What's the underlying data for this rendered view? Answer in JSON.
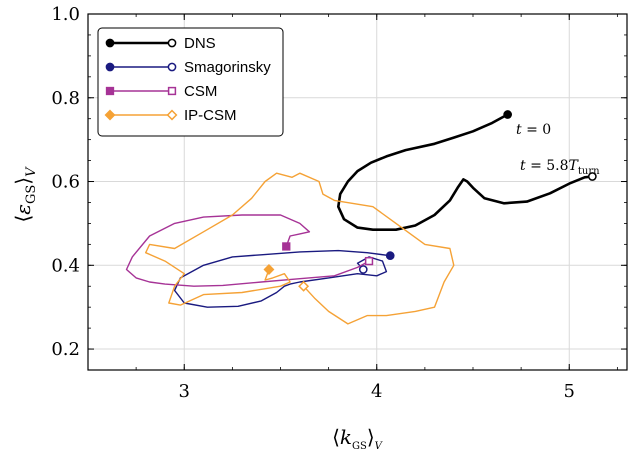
{
  "chart_data": {
    "type": "line",
    "title": "",
    "xlabel": "⟨k_GS⟩_V",
    "ylabel": "⟨ε_GS⟩_V",
    "xlim": [
      2.5,
      5.3
    ],
    "ylim": [
      0.15,
      1.0
    ],
    "x_ticks": [
      3,
      4,
      5
    ],
    "y_ticks": [
      0.2,
      0.4,
      0.6,
      0.8,
      1.0
    ],
    "x_tick_labels": [
      "3",
      "4",
      "5"
    ],
    "y_tick_labels": [
      "0.2",
      "0.4",
      "0.6",
      "0.8",
      "1.0"
    ],
    "grid": true,
    "legend_position": "top-left",
    "annotations": [
      {
        "text": "t = 0",
        "x": 4.72,
        "y": 0.72
      },
      {
        "text": "t = 5.8T_turn",
        "x": 4.75,
        "y": 0.62
      }
    ],
    "series": [
      {
        "name": "DNS",
        "color": "#000000",
        "start_marker": "filled-circle",
        "end_marker": "open-circle",
        "points": [
          [
            4.68,
            0.76
          ],
          [
            4.6,
            0.74
          ],
          [
            4.5,
            0.72
          ],
          [
            4.4,
            0.705
          ],
          [
            4.3,
            0.69
          ],
          [
            4.15,
            0.675
          ],
          [
            4.05,
            0.66
          ],
          [
            3.97,
            0.645
          ],
          [
            3.9,
            0.625
          ],
          [
            3.85,
            0.6
          ],
          [
            3.81,
            0.57
          ],
          [
            3.8,
            0.54
          ],
          [
            3.83,
            0.51
          ],
          [
            3.9,
            0.49
          ],
          [
            3.98,
            0.485
          ],
          [
            4.1,
            0.485
          ],
          [
            4.2,
            0.495
          ],
          [
            4.3,
            0.52
          ],
          [
            4.38,
            0.555
          ],
          [
            4.42,
            0.585
          ],
          [
            4.45,
            0.605
          ],
          [
            4.47,
            0.6
          ],
          [
            4.5,
            0.585
          ],
          [
            4.56,
            0.56
          ],
          [
            4.66,
            0.548
          ],
          [
            4.78,
            0.552
          ],
          [
            4.9,
            0.572
          ],
          [
            5.0,
            0.595
          ],
          [
            5.08,
            0.61
          ],
          [
            5.12,
            0.612
          ]
        ]
      },
      {
        "name": "Smagorinsky",
        "color": "#1a1a80",
        "start_marker": "filled-circle",
        "end_marker": "open-circle",
        "points": [
          [
            4.07,
            0.423
          ],
          [
            3.95,
            0.43
          ],
          [
            3.8,
            0.435
          ],
          [
            3.6,
            0.432
          ],
          [
            3.4,
            0.425
          ],
          [
            3.25,
            0.42
          ],
          [
            3.1,
            0.4
          ],
          [
            2.98,
            0.37
          ],
          [
            2.95,
            0.34
          ],
          [
            3.0,
            0.31
          ],
          [
            3.12,
            0.3
          ],
          [
            3.28,
            0.302
          ],
          [
            3.4,
            0.315
          ],
          [
            3.48,
            0.335
          ],
          [
            3.52,
            0.35
          ],
          [
            3.55,
            0.355
          ],
          [
            3.6,
            0.36
          ],
          [
            3.75,
            0.37
          ],
          [
            3.9,
            0.38
          ],
          [
            4.0,
            0.375
          ],
          [
            4.05,
            0.385
          ],
          [
            4.03,
            0.41
          ],
          [
            3.96,
            0.42
          ],
          [
            3.9,
            0.405
          ],
          [
            3.93,
            0.39
          ]
        ]
      },
      {
        "name": "CSM",
        "color": "#a63396",
        "start_marker": "filled-square",
        "end_marker": "open-square",
        "points": [
          [
            3.53,
            0.445
          ],
          [
            3.55,
            0.47
          ],
          [
            3.6,
            0.475
          ],
          [
            3.65,
            0.48
          ],
          [
            3.6,
            0.5
          ],
          [
            3.5,
            0.52
          ],
          [
            3.3,
            0.52
          ],
          [
            3.1,
            0.515
          ],
          [
            2.95,
            0.5
          ],
          [
            2.82,
            0.47
          ],
          [
            2.73,
            0.42
          ],
          [
            2.7,
            0.39
          ],
          [
            2.75,
            0.37
          ],
          [
            2.82,
            0.36
          ],
          [
            2.9,
            0.355
          ],
          [
            3.05,
            0.35
          ],
          [
            3.2,
            0.352
          ],
          [
            3.4,
            0.36
          ],
          [
            3.6,
            0.368
          ],
          [
            3.78,
            0.375
          ],
          [
            3.9,
            0.395
          ],
          [
            3.96,
            0.41
          ]
        ]
      },
      {
        "name": "IP-CSM",
        "color": "#f5a236",
        "start_marker": "filled-diamond",
        "end_marker": "open-diamond",
        "points": [
          [
            3.44,
            0.39
          ],
          [
            3.42,
            0.365
          ],
          [
            3.46,
            0.37
          ],
          [
            3.52,
            0.38
          ],
          [
            3.55,
            0.36
          ],
          [
            3.5,
            0.35
          ],
          [
            3.3,
            0.335
          ],
          [
            3.1,
            0.33
          ],
          [
            2.98,
            0.305
          ],
          [
            2.92,
            0.31
          ],
          [
            2.95,
            0.35
          ],
          [
            3.0,
            0.38
          ],
          [
            2.9,
            0.41
          ],
          [
            2.8,
            0.43
          ],
          [
            2.82,
            0.45
          ],
          [
            2.95,
            0.44
          ],
          [
            3.1,
            0.48
          ],
          [
            3.25,
            0.52
          ],
          [
            3.35,
            0.56
          ],
          [
            3.42,
            0.6
          ],
          [
            3.48,
            0.62
          ],
          [
            3.56,
            0.61
          ],
          [
            3.6,
            0.62
          ],
          [
            3.7,
            0.6
          ],
          [
            3.72,
            0.57
          ],
          [
            3.78,
            0.555
          ],
          [
            3.98,
            0.54
          ],
          [
            4.1,
            0.5
          ],
          [
            4.25,
            0.45
          ],
          [
            4.38,
            0.44
          ],
          [
            4.4,
            0.4
          ],
          [
            4.35,
            0.36
          ],
          [
            4.3,
            0.3
          ],
          [
            4.2,
            0.29
          ],
          [
            4.05,
            0.28
          ],
          [
            3.95,
            0.28
          ],
          [
            3.85,
            0.26
          ],
          [
            3.75,
            0.29
          ],
          [
            3.68,
            0.32
          ],
          [
            3.62,
            0.35
          ]
        ]
      }
    ]
  }
}
